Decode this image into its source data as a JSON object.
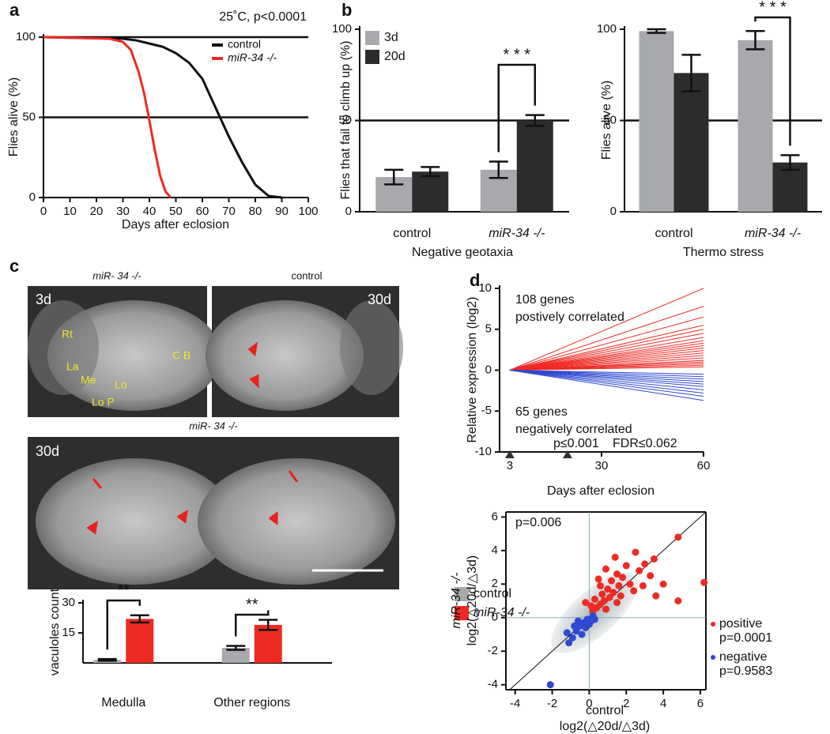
{
  "panel_labels": [
    "a",
    "b",
    "c",
    "d"
  ],
  "images": {
    "top_left": {
      "title": "miR- 34 -/-",
      "age": "3d",
      "regions": [
        "Rt",
        "La",
        "Me",
        "Lo",
        "Lo P",
        "C B"
      ]
    },
    "top_right": {
      "title": "control",
      "age": "30d"
    },
    "bottom": {
      "title": "miR- 34 -/-",
      "age": "30d"
    }
  },
  "chart_data": [
    {
      "type": "line",
      "title": "25˚C, p<0.0001",
      "xlabel": "Days after eclosion",
      "ylabel": "Flies alive (%)",
      "xlim": [
        0,
        100
      ],
      "ylim": [
        0,
        100
      ],
      "xticks": [
        0,
        10,
        20,
        30,
        40,
        50,
        60,
        70,
        80,
        90,
        100
      ],
      "yticks": [
        0,
        50,
        100
      ],
      "hlines": [
        50,
        100
      ],
      "legend": "upper right",
      "series": [
        {
          "name": "control",
          "color": "#111111",
          "x": [
            0,
            30,
            35,
            40,
            45,
            50,
            55,
            60,
            65,
            70,
            75,
            80,
            85,
            90
          ],
          "values": [
            100,
            99,
            98,
            96,
            94,
            90,
            84,
            74,
            56,
            38,
            22,
            8,
            1,
            0
          ]
        },
        {
          "name": "miR-34 -/-",
          "color": "#ee2a24",
          "x": [
            0,
            25,
            30,
            33,
            36,
            38,
            40,
            42,
            44,
            46,
            48
          ],
          "values": [
            100,
            99,
            97,
            92,
            78,
            65,
            48,
            30,
            14,
            4,
            0
          ]
        }
      ]
    },
    {
      "type": "bar",
      "ylabel": "Flies that fail to climb up (%)",
      "xlabel": "Negative geotaxia",
      "categories": [
        "control",
        "miR-34 -/-"
      ],
      "ylim": [
        0,
        100
      ],
      "yticks": [
        0,
        50,
        100
      ],
      "hlines": [
        50
      ],
      "legend": "upper left",
      "series": [
        {
          "name": "3d",
          "color": "#a7a9ac",
          "values": [
            19,
            23
          ],
          "errors": [
            4,
            4.5
          ]
        },
        {
          "name": "20d",
          "color": "#2c2c2c",
          "values": [
            22,
            50
          ],
          "errors": [
            2.5,
            3
          ]
        }
      ],
      "significance": [
        {
          "label": "* * *",
          "category": 1
        }
      ]
    },
    {
      "type": "bar",
      "ylabel": "Flies alive (%)",
      "xlabel": "Thermo stress",
      "categories": [
        "control",
        "miR-34 -/-"
      ],
      "ylim": [
        0,
        100
      ],
      "yticks": [
        0,
        50,
        100
      ],
      "hlines": [
        50
      ],
      "series": [
        {
          "color": "#a7a9ac",
          "values": [
            99,
            94
          ],
          "errors": [
            1,
            5
          ]
        },
        {
          "color": "#2c2c2c",
          "values": [
            76,
            27
          ],
          "errors": [
            10,
            4
          ]
        }
      ],
      "significance": [
        {
          "label": "* * *",
          "category": 1
        }
      ]
    },
    {
      "type": "bar",
      "ylabel": "vaculoles count",
      "categories": [
        "Medulla",
        "Other regions"
      ],
      "ylim": [
        0,
        30
      ],
      "yticks": [
        15,
        30
      ],
      "legend": "right",
      "series": [
        {
          "name": "control",
          "color": "#a7a9ac",
          "values": [
            1.5,
            7.5
          ],
          "errors": [
            0.4,
            1
          ]
        },
        {
          "name": "miR-34 -/-",
          "color": "#ee2a24",
          "values": [
            22,
            19
          ],
          "errors": [
            1.8,
            2.5
          ]
        }
      ],
      "significance": [
        {
          "label": "**",
          "category": 0
        },
        {
          "label": "**",
          "category": 1
        }
      ]
    },
    {
      "type": "line",
      "xlabel": "Days after eclosion",
      "ylabel": "Relative expression (log2)",
      "xlim": [
        0,
        60
      ],
      "ylim": [
        -10,
        10
      ],
      "xticks": [
        3,
        30,
        60
      ],
      "yticks": [
        -10,
        -5,
        0,
        5,
        10
      ],
      "markers": [
        3,
        20
      ],
      "annotations": [
        {
          "text": "108 genes",
          "color": "#ee2a24"
        },
        {
          "text": "postively correlated",
          "color": "#ee2a24"
        },
        {
          "text": "65 genes",
          "color": "#2f49d1"
        },
        {
          "text": "negatively correlated",
          "color": "#2f49d1"
        },
        {
          "text": "p≤0.001",
          "color": "#111111"
        },
        {
          "text": "FDR≤0.062",
          "color": "#111111"
        }
      ],
      "x": [
        3,
        60
      ],
      "series": [
        {
          "color": "#ee2a24",
          "values": [
            0,
            10
          ]
        },
        {
          "color": "#ee2a24",
          "values": [
            0,
            7.8
          ]
        },
        {
          "color": "#ee2a24",
          "values": [
            0,
            6.5
          ]
        },
        {
          "color": "#ee2a24",
          "values": [
            0,
            5.5
          ]
        },
        {
          "color": "#ee2a24",
          "values": [
            0,
            5
          ]
        },
        {
          "color": "#ee2a24",
          "values": [
            0,
            4.5
          ]
        },
        {
          "color": "#ee2a24",
          "values": [
            0,
            4
          ]
        },
        {
          "color": "#ee2a24",
          "values": [
            0,
            3.6
          ]
        },
        {
          "color": "#ee2a24",
          "values": [
            0,
            3.3
          ]
        },
        {
          "color": "#ee2a24",
          "values": [
            0,
            3
          ]
        },
        {
          "color": "#ee2a24",
          "values": [
            0,
            2.7
          ]
        },
        {
          "color": "#ee2a24",
          "values": [
            0,
            2.4
          ]
        },
        {
          "color": "#ee2a24",
          "values": [
            0,
            2.1
          ]
        },
        {
          "color": "#ee2a24",
          "values": [
            0,
            1.8
          ]
        },
        {
          "color": "#ee2a24",
          "values": [
            0,
            1.5
          ]
        },
        {
          "color": "#ee2a24",
          "values": [
            0,
            1.2
          ]
        },
        {
          "color": "#ee2a24",
          "values": [
            0,
            1
          ]
        },
        {
          "color": "#ee2a24",
          "values": [
            0,
            0.8
          ]
        },
        {
          "color": "#ee2a24",
          "values": [
            0,
            0.6
          ]
        },
        {
          "color": "#ee2a24",
          "values": [
            0,
            0.4
          ]
        },
        {
          "color": "#2f49d1",
          "values": [
            0,
            -3.7
          ]
        },
        {
          "color": "#2f49d1",
          "values": [
            0,
            -3.2
          ]
        },
        {
          "color": "#2f49d1",
          "values": [
            0,
            -2.8
          ]
        },
        {
          "color": "#2f49d1",
          "values": [
            0,
            -2.4
          ]
        },
        {
          "color": "#2f49d1",
          "values": [
            0,
            -2
          ]
        },
        {
          "color": "#2f49d1",
          "values": [
            0,
            -1.7
          ]
        },
        {
          "color": "#2f49d1",
          "values": [
            0,
            -1.4
          ]
        },
        {
          "color": "#2f49d1",
          "values": [
            0,
            -1.1
          ]
        },
        {
          "color": "#2f49d1",
          "values": [
            0,
            -0.8
          ]
        },
        {
          "color": "#2f49d1",
          "values": [
            0,
            -0.5
          ]
        }
      ]
    },
    {
      "type": "scatter",
      "xlabel": [
        "control",
        "log2(△20d/△3d)"
      ],
      "ylabel": [
        "miR-34 -/-",
        "log2(△20d/△3d)"
      ],
      "xlim": [
        -4.5,
        6.3
      ],
      "ylim": [
        -4.3,
        6.3
      ],
      "xticks": [
        -4,
        -2,
        0,
        2,
        4,
        6
      ],
      "yticks": [
        -4,
        -2,
        0,
        2,
        4,
        6
      ],
      "annotations": [
        {
          "text": "p=0.006",
          "color": "#111111"
        }
      ],
      "legend": "right",
      "series": [
        {
          "name": "positive",
          "note": "p=0.0001",
          "color": "#ee2a24",
          "x": [
            4.8,
            6.2,
            4.8,
            3.6,
            3.5,
            3.0,
            2.7,
            2.5,
            2.2,
            2.0,
            1.8,
            1.6,
            1.5,
            1.4,
            1.3,
            1.2,
            1.1,
            1.0,
            0.9,
            0.8,
            0.7,
            0.6,
            0.5,
            0.4,
            0.3,
            0.2,
            0.1,
            1.7,
            2.4,
            0.9,
            3.3,
            4.0,
            1.5,
            0.6,
            -0.2,
            2.9
          ],
          "values": [
            4.8,
            2.1,
            1.0,
            1.3,
            3.5,
            3.2,
            2.8,
            3.9,
            2.0,
            3.1,
            2.4,
            1.9,
            2.6,
            3.6,
            1.5,
            2.2,
            1.2,
            1.7,
            2.9,
            1.0,
            1.4,
            0.8,
            2.3,
            0.6,
            1.1,
            0.4,
            0.7,
            1.3,
            1.6,
            0.5,
            2.5,
            2.0,
            0.9,
            1.9,
            0.9,
            1.9
          ]
        },
        {
          "name": "negative",
          "note": "p=0.9583",
          "color": "#2f49d1",
          "x": [
            -2.1,
            -1.1,
            -0.9,
            -0.7,
            -0.5,
            -0.4,
            -0.3,
            -0.2,
            -0.1,
            0,
            0.1,
            0.2,
            -0.6,
            -0.8,
            0.3,
            -1.2
          ],
          "values": [
            -4.0,
            -1.5,
            -1.2,
            -0.8,
            -0.5,
            -1.0,
            -0.3,
            -0.6,
            -0.1,
            -0.4,
            -0.2,
            0.1,
            -0.2,
            -0.5,
            -0.1,
            -0.9
          ]
        }
      ]
    }
  ]
}
